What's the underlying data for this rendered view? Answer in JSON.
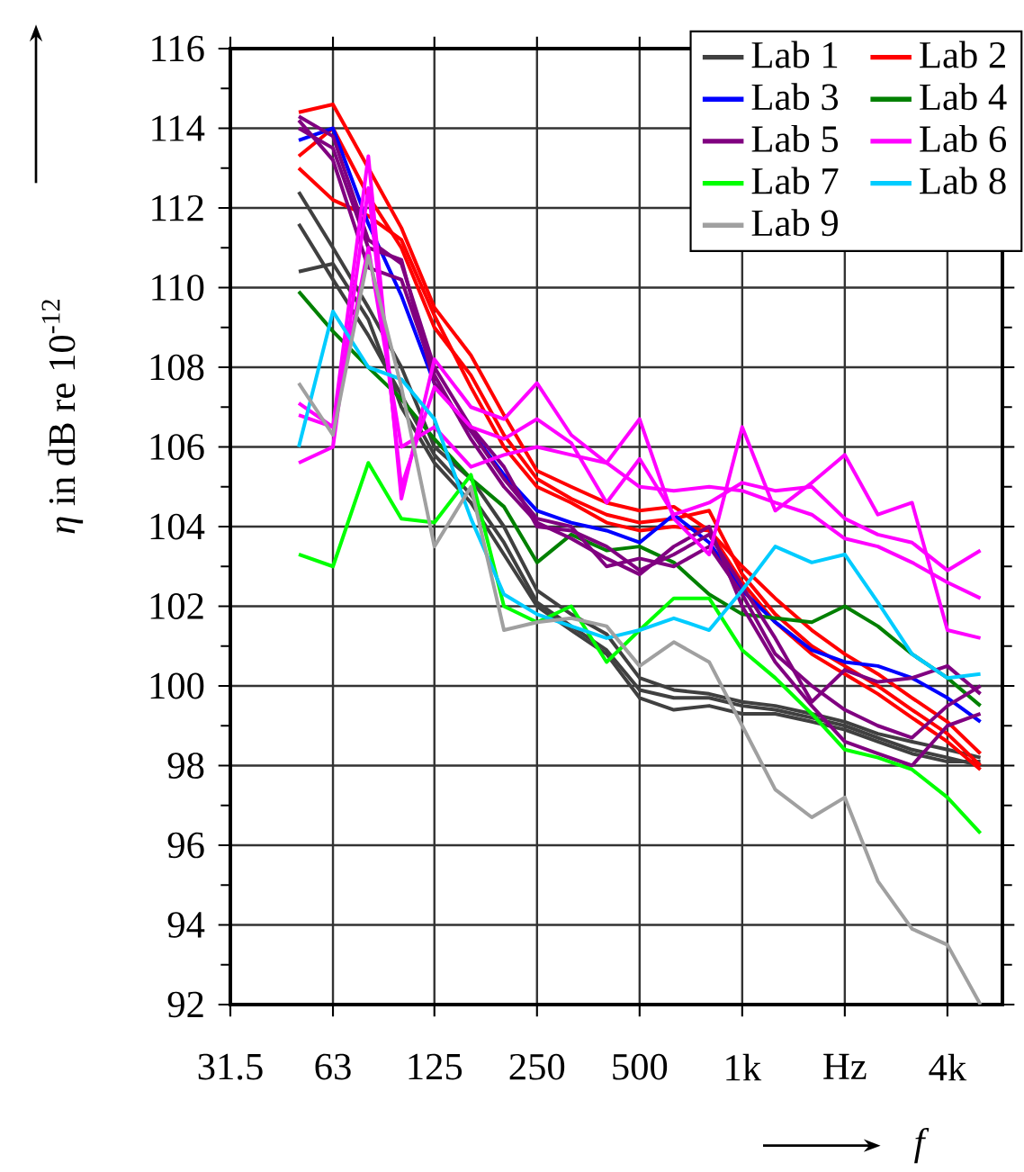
{
  "chart_data": {
    "type": "line",
    "xlabel": "*f*",
    "ylabel": "*η* in dB re 10$^{-12}$",
    "log": "x",
    "x": [
      50,
      63,
      80,
      100,
      125,
      160,
      200,
      250,
      315,
      400,
      500,
      630,
      800,
      1000,
      1250,
      1600,
      2000,
      2500,
      3150,
      4000,
      5000
    ],
    "xlim": [
      31.5,
      5800
    ],
    "xticks": [
      31.5,
      63,
      125,
      250,
      500,
      {
        "value": 1000,
        "label": "1k"
      },
      {
        "value": 2000,
        "label": "Hz"
      },
      {
        "value": 4000,
        "label": "4k"
      }
    ],
    "ylim": [
      92,
      116
    ],
    "yticks": [
      92,
      94,
      96,
      98,
      100,
      102,
      104,
      106,
      108,
      110,
      112,
      114,
      116
    ],
    "grid": true,
    "legend": "top right",
    "series": [
      {
        "name": "Lab 1",
        "color": "#404040",
        "values": [
          112.4,
          111.0,
          109.5,
          108.0,
          106.0,
          105.2,
          104.0,
          102.4,
          101.8,
          101.3,
          100.2,
          99.9,
          99.8,
          99.6,
          99.5,
          99.3,
          99.1,
          98.8,
          98.6,
          98.4,
          98.2
        ]
      },
      {
        "color": "#404040",
        "values": [
          111.6,
          110.2,
          108.8,
          107.3,
          105.8,
          104.8,
          103.6,
          102.1,
          101.5,
          100.9,
          99.9,
          99.7,
          99.7,
          99.5,
          99.4,
          99.2,
          99.0,
          98.7,
          98.4,
          98.2,
          98.0
        ]
      },
      {
        "color": "#404040",
        "values": [
          110.4,
          110.6,
          109.2,
          107.0,
          105.6,
          104.6,
          103.3,
          102.0,
          101.4,
          100.8,
          99.7,
          99.4,
          99.5,
          99.3,
          99.3,
          99.1,
          98.9,
          98.6,
          98.3,
          98.1,
          98.1
        ]
      },
      {
        "name": "Lab 2",
        "color": "#ff0000",
        "values": [
          114.4,
          114.6,
          113.0,
          111.5,
          109.5,
          108.3,
          106.8,
          105.4,
          105.0,
          104.6,
          104.4,
          104.5,
          103.9,
          103.0,
          102.2,
          101.4,
          100.8,
          100.3,
          99.7,
          99.1,
          98.3
        ]
      },
      {
        "color": "#ff0000",
        "values": [
          113.3,
          114.0,
          112.3,
          111.0,
          109.0,
          107.8,
          106.3,
          105.2,
          104.7,
          104.3,
          104.1,
          104.2,
          104.4,
          102.8,
          101.8,
          101.0,
          100.5,
          100.0,
          99.4,
          98.8,
          98.0
        ]
      },
      {
        "color": "#ff0000",
        "values": [
          113.0,
          112.2,
          111.8,
          111.2,
          109.3,
          107.5,
          106.0,
          105.0,
          104.6,
          104.1,
          103.9,
          104.0,
          103.9,
          102.6,
          101.6,
          100.8,
          100.3,
          99.8,
          99.2,
          98.6,
          97.9
        ]
      },
      {
        "name": "Lab 3",
        "color": "#0000ff",
        "values": [
          113.7,
          114.0,
          111.6,
          109.8,
          107.6,
          106.4,
          105.3,
          104.4,
          104.1,
          103.9,
          103.6,
          104.3,
          103.6,
          102.4,
          101.6,
          100.9,
          100.6,
          100.5,
          100.2,
          99.7,
          99.1
        ]
      },
      {
        "name": "Lab 4",
        "color": "#008000",
        "values": [
          109.9,
          108.9,
          108.0,
          107.2,
          106.2,
          105.2,
          104.5,
          103.1,
          103.8,
          103.4,
          103.5,
          103.1,
          102.3,
          101.8,
          101.7,
          101.6,
          102.0,
          101.5,
          100.8,
          100.2,
          99.5
        ]
      },
      {
        "name": "Lab 5",
        "color": "#800080",
        "values": [
          114.3,
          113.8,
          111.2,
          110.6,
          108.0,
          106.5,
          105.5,
          104.0,
          103.9,
          103.5,
          102.9,
          103.3,
          103.8,
          102.5,
          101.2,
          99.6,
          100.4,
          100.1,
          100.2,
          100.5,
          99.8
        ]
      },
      {
        "color": "#800080",
        "values": [
          114.0,
          113.5,
          111.0,
          110.7,
          107.6,
          106.4,
          105.2,
          104.2,
          104.0,
          103.0,
          103.2,
          103.0,
          103.5,
          102.3,
          100.8,
          100.0,
          99.4,
          99.0,
          98.7,
          99.5,
          100.0
        ]
      },
      {
        "color": "#800080",
        "values": [
          114.2,
          113.2,
          110.5,
          110.2,
          107.8,
          106.2,
          105.0,
          104.1,
          103.7,
          103.2,
          102.8,
          103.5,
          104.0,
          102.0,
          100.6,
          99.5,
          98.6,
          98.3,
          98.0,
          99.0,
          99.3
        ]
      },
      {
        "name": "Lab 6",
        "color": "#ff00ff",
        "values": [
          107.1,
          106.5,
          113.3,
          104.7,
          108.2,
          107.0,
          106.7,
          107.6,
          106.3,
          105.6,
          106.7,
          104.2,
          103.3,
          106.5,
          104.4,
          105.1,
          105.8,
          104.3,
          104.6,
          101.4,
          101.2
        ]
      },
      {
        "color": "#ff00ff",
        "values": [
          105.6,
          106.0,
          112.5,
          105.0,
          107.5,
          106.5,
          106.2,
          106.7,
          106.1,
          104.6,
          105.7,
          104.3,
          104.6,
          105.1,
          104.9,
          105.0,
          104.2,
          103.8,
          103.6,
          102.9,
          103.4
        ]
      },
      {
        "color": "#ff00ff",
        "values": [
          106.8,
          106.5,
          111.0,
          106.0,
          106.5,
          105.5,
          105.8,
          106.0,
          105.8,
          105.6,
          105.0,
          104.9,
          105.0,
          104.9,
          104.6,
          104.3,
          103.7,
          103.5,
          103.1,
          102.6,
          102.2
        ]
      },
      {
        "name": "Lab 7",
        "color": "#00ff00",
        "values": [
          103.3,
          103.0,
          105.6,
          104.2,
          104.1,
          105.3,
          102.0,
          101.6,
          102.0,
          100.6,
          101.4,
          102.2,
          102.2,
          100.9,
          100.2,
          99.3,
          98.4,
          98.2,
          97.9,
          97.2,
          96.3
        ]
      },
      {
        "name": "Lab 8",
        "color": "#00ccff",
        "values": [
          106.0,
          109.4,
          108.0,
          107.7,
          106.7,
          104.2,
          102.3,
          101.8,
          101.5,
          101.2,
          101.4,
          101.7,
          101.4,
          102.4,
          103.5,
          103.1,
          103.3,
          102.1,
          100.8,
          100.2,
          100.3
        ]
      },
      {
        "name": "Lab 9",
        "color": "#a0a0a0",
        "values": [
          107.6,
          106.3,
          110.8,
          107.5,
          103.5,
          105.0,
          101.4,
          101.6,
          101.7,
          101.5,
          100.5,
          101.1,
          100.6,
          99.0,
          97.4,
          96.7,
          97.2,
          95.1,
          93.9,
          93.5,
          92.0
        ]
      }
    ]
  }
}
